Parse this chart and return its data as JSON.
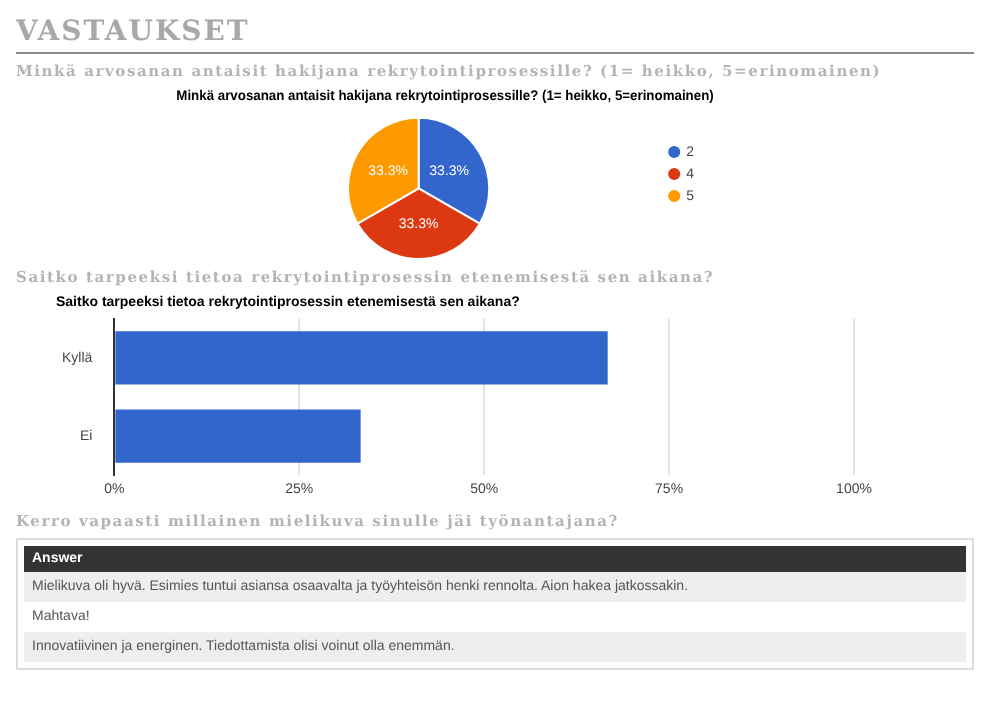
{
  "chart_data": [
    {
      "type": "pie",
      "annotations": [
        "VASTAUKSET"
      ],
      "subtitle": "Minkä arvosanan antaisit hakijana rekrytointiprosessille? (1= heikko, 5=erinomainen)",
      "title": "Minkä arvosanan antaisit hakijana rekrytointiprosessille? (1= heikko, 5=erinomainen)",
      "categories": [
        "2",
        "4",
        "5"
      ],
      "values": [
        33.3,
        33.3,
        33.3
      ],
      "colors": [
        "#3366cc",
        "#dc3912",
        "#ff9900"
      ],
      "value_labels": [
        "33.3%",
        "33.3%",
        "33.3%"
      ],
      "legend": "right"
    },
    {
      "type": "bar",
      "orientation": "horizontal",
      "subtitle": "Saitko tarpeeksi tietoa rekrytointiprosessin etenemisestä sen aikana?",
      "title": "Saitko tarpeeksi tietoa rekrytointiprosessin etenemisestä sen aikana?",
      "categories": [
        "Kyllä",
        "Ei"
      ],
      "values": [
        66.7,
        33.3
      ],
      "color": "#3366cc",
      "xlim": [
        0,
        100
      ],
      "xticks": [
        {
          "value": 0,
          "label": "0%"
        },
        {
          "value": 25,
          "label": "25%"
        },
        {
          "value": 50,
          "label": "50%"
        },
        {
          "value": 75,
          "label": "75%"
        },
        {
          "value": 100,
          "label": "100%"
        }
      ],
      "grid": "x"
    },
    {
      "type": "other",
      "title": "Kerro vapaasti millainen mielikuva sinulle jäi työnantajana?",
      "annotations": [
        "Answer",
        "Mielikuva oli hyvä. Esimies tuntui asiansa osaavalta ja työyhteisön henki rennolta. Aion hakea jatkossakin.",
        "Mahtava!",
        "Innovatiivinen ja energinen. Tiedottamista olisi voinut olla enemmän."
      ]
    }
  ]
}
